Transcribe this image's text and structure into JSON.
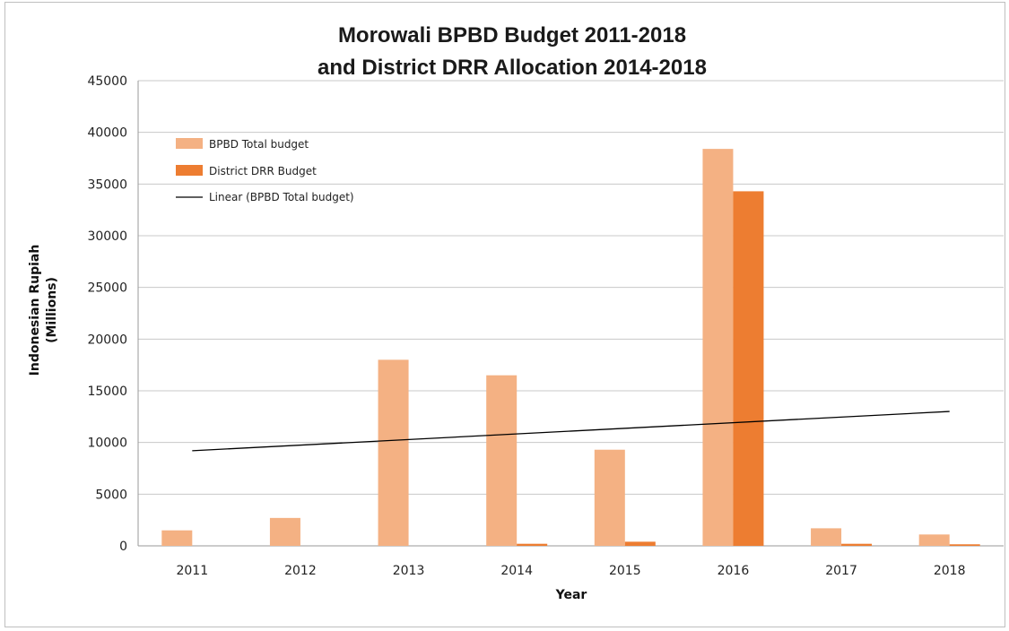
{
  "chart_data": {
    "type": "bar",
    "title_line1": "Morowali BPBD Budget 2011-2018",
    "title_line2": "and District DRR Allocation 2014-2018",
    "xlabel": "Year",
    "ylabel_line1": "Indonesian Rupiah",
    "ylabel_line2": "(Millions)",
    "ylim": [
      0,
      45000
    ],
    "yticks": [
      "0",
      "5000",
      "10000",
      "15000",
      "20000",
      "25000",
      "30000",
      "35000",
      "40000",
      "45000"
    ],
    "ytick_values": [
      0,
      5000,
      10000,
      15000,
      20000,
      25000,
      30000,
      35000,
      40000,
      45000
    ],
    "categories": [
      "2011",
      "2012",
      "2013",
      "2014",
      "2015",
      "2016",
      "2017",
      "2018"
    ],
    "series": [
      {
        "name": "BPBD Total budget",
        "color": "#f4b183",
        "values": [
          1500,
          2700,
          18000,
          16500,
          9300,
          38400,
          1700,
          1100
        ]
      },
      {
        "name": "District DRR Budget",
        "color": "#ed7d31",
        "values": [
          0,
          0,
          0,
          200,
          400,
          34300,
          200,
          150
        ]
      }
    ],
    "trendline": {
      "name": "Linear (BPBD Total budget)",
      "color": "#000000",
      "start": 9200,
      "end": 13000
    },
    "grid": true,
    "legend_position": "top-left"
  }
}
